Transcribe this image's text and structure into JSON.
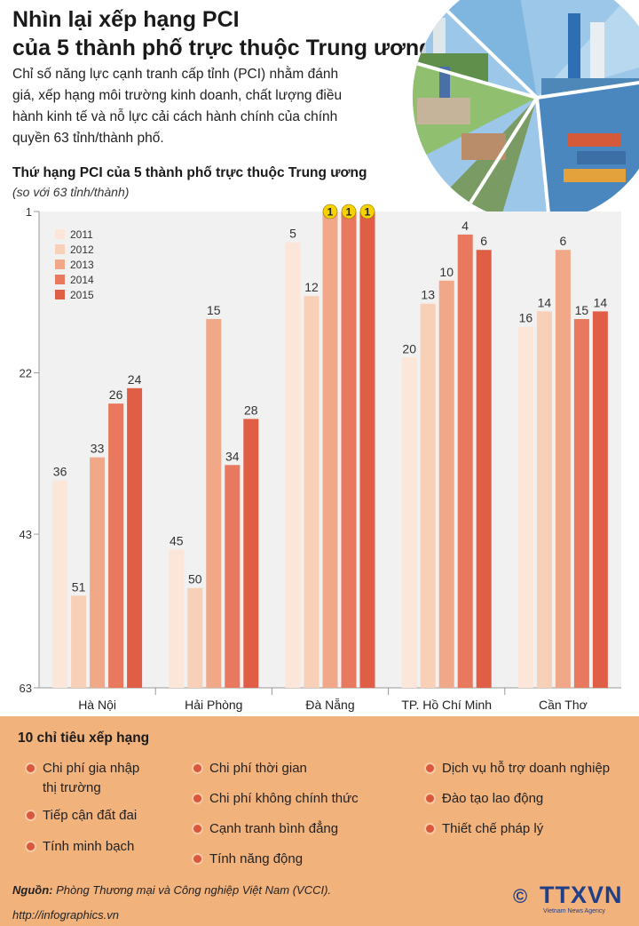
{
  "header": {
    "title_line1": "Nhìn lại xếp hạng PCI",
    "title_line2": "của 5 thành phố trực thuộc Trung ương",
    "intro_line1": "Chỉ số năng lực cạnh tranh cấp tỉnh (PCI) nhằm đánh",
    "intro_line2": "giá, xếp hạng môi trường kinh doanh, chất lượng điều",
    "intro_line3": "hành kinh tế và nỗ lực cải cách hành chính của chính",
    "intro_line4": "quyền 63 tỉnh/thành phố."
  },
  "chart_data": {
    "type": "bar",
    "title": "Thứ hạng PCI của 5 thành phố trực thuộc Trung ương",
    "subtitle": "(so với 63 tỉnh/thành)",
    "categories": [
      "Hà Nội",
      "Hải Phòng",
      "Đà Nẵng",
      "TP. Hồ Chí Minh",
      "Cần Thơ"
    ],
    "series": [
      {
        "name": "2011",
        "color": "#fbe6d9",
        "values": [
          36,
          45,
          5,
          20,
          16
        ]
      },
      {
        "name": "2012",
        "color": "#f8d0b8",
        "values": [
          51,
          50,
          12,
          13,
          14
        ]
      },
      {
        "name": "2013",
        "color": "#f1a888",
        "values": [
          33,
          15,
          1,
          10,
          6
        ]
      },
      {
        "name": "2014",
        "color": "#e8785e",
        "values": [
          26,
          34,
          1,
          4,
          15
        ]
      },
      {
        "name": "2015",
        "color": "#e05e45",
        "values": [
          24,
          28,
          1,
          6,
          14
        ]
      }
    ],
    "y_ticks": [
      "1",
      "22",
      "43",
      "63"
    ],
    "y_range": [
      1,
      63
    ],
    "y_inverted": true,
    "grid": false,
    "legend_position": "top-left",
    "highlight_color": "#f5d200"
  },
  "criteria": {
    "title": "10 chỉ tiêu xếp hạng",
    "col1": [
      "Chi phí gia nhập",
      "thị trường",
      "Tiếp cận đất đai",
      "Tính minh bạch"
    ],
    "col2": [
      "Chi phí thời gian",
      "Chi phí không chính thức",
      "Cạnh tranh bình đẳng",
      "Tính năng động"
    ],
    "col3": [
      "Dịch vụ hỗ trợ doanh nghiệp",
      "Đào tạo lao động",
      "Thiết chế pháp lý"
    ]
  },
  "footer": {
    "source_label": "Nguồn:",
    "source_text": " Phòng Thương mại và Công nghiệp Việt Nam (VCCI).",
    "url": "http://infographics.vn",
    "logo_symbol": "©",
    "logo_text": "TTXVN",
    "logo_sub": "Vietnam News Agency"
  },
  "colors": {
    "accent": "#e05e45",
    "bottom_panel": "#f2b27c",
    "logo": "#1f3f88"
  }
}
